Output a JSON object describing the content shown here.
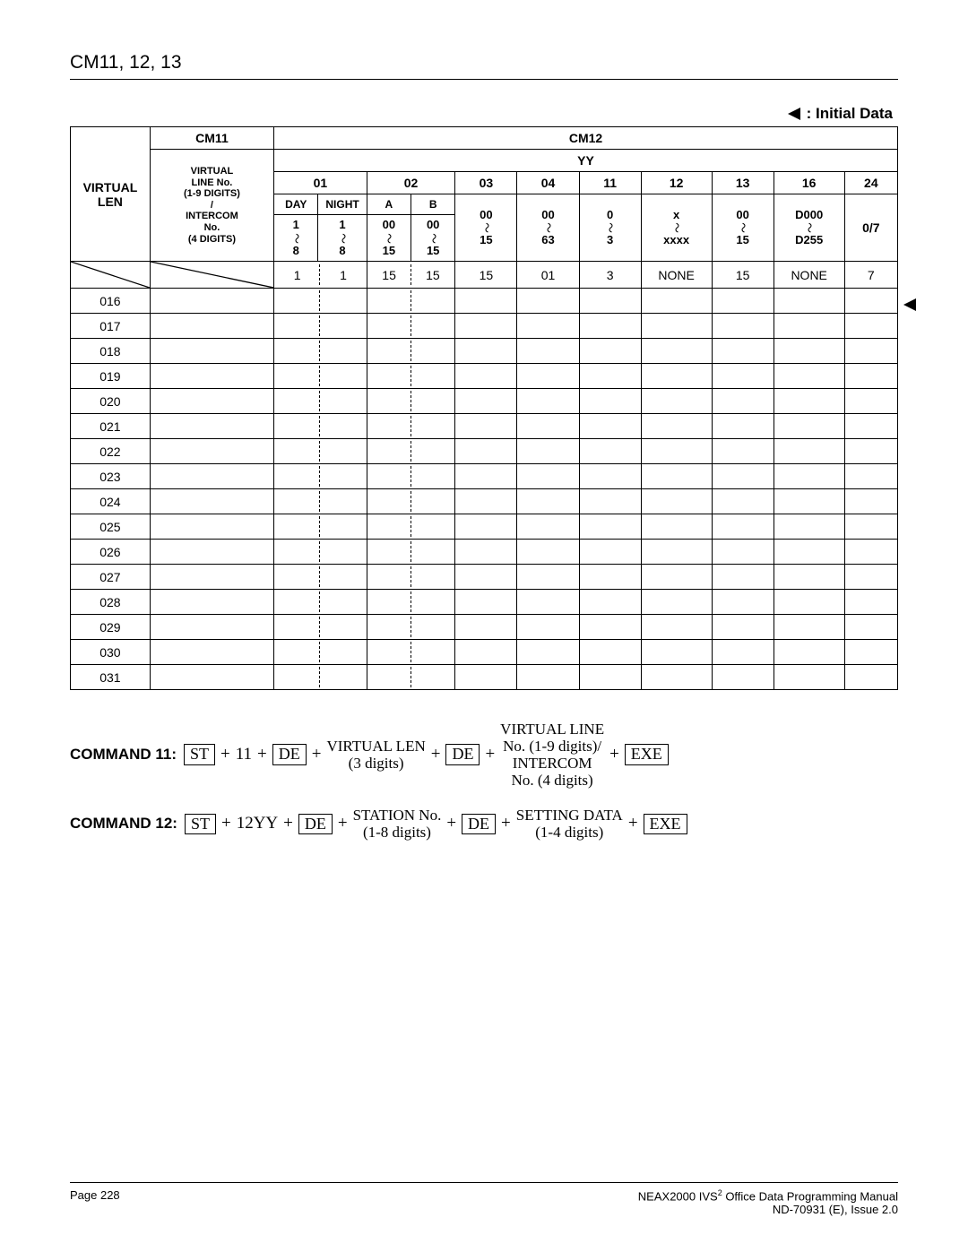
{
  "header": {
    "title": "CM11, 12, 13"
  },
  "initial_data_label": ": Initial Data",
  "table": {
    "col0_header": "VIRTUAL LEN",
    "cm11": "CM11",
    "cm12": "CM12",
    "yy": "YY",
    "cm11_sub_lines": [
      "VIRTUAL",
      "LINE No.",
      "(1-9 DIGITS)",
      "/",
      "INTERCOM",
      "No.",
      "(4 DIGITS)"
    ],
    "yy_cols": [
      "01",
      "02",
      "03",
      "04",
      "11",
      "12",
      "13",
      "16",
      "24"
    ],
    "col01_sub": [
      "DAY",
      "NIGHT"
    ],
    "col02_sub": [
      "A",
      "B"
    ],
    "col01_range": [
      "1",
      "8"
    ],
    "col02_range": [
      "00",
      "15"
    ],
    "col03_range": [
      "00",
      "15"
    ],
    "col04_range": [
      "00",
      "63"
    ],
    "col11_range": [
      "0",
      "3"
    ],
    "col12_range": [
      "x",
      "xxxx"
    ],
    "col13_range": [
      "00",
      "15"
    ],
    "col16_range": [
      "D000",
      "D255"
    ],
    "col24_range": "0/7",
    "initial_row": {
      "c01a": "1",
      "c01b": "1",
      "c02a": "15",
      "c02b": "15",
      "c03": "15",
      "c04": "01",
      "c11": "3",
      "c12": "NONE",
      "c13": "15",
      "c16": "NONE",
      "c24": "7"
    },
    "len_rows": [
      "016",
      "017",
      "018",
      "019",
      "020",
      "021",
      "022",
      "023",
      "024",
      "025",
      "026",
      "027",
      "028",
      "029",
      "030",
      "031"
    ]
  },
  "commands": {
    "c11_label": "COMMAND 11:",
    "c12_label": "COMMAND 12:",
    "ST": "ST",
    "DE": "DE",
    "EXE": "EXE",
    "plus": "+",
    "c11_a": "11",
    "c11_vlen_top": "VIRTUAL LEN",
    "c11_vlen_bot": "(3 digits)",
    "c11_vln1": "VIRTUAL LINE",
    "c11_vln2": "No. (1-9 digits)/",
    "c11_vln3": "INTERCOM",
    "c11_vln4": "No. (4 digits)",
    "c12_a": "12YY",
    "c12_stn_top": "STATION No.",
    "c12_stn_bot": "(1-8 digits)",
    "c12_set_top": "SETTING DATA",
    "c12_set_bot": "(1-4 digits)"
  },
  "footer": {
    "page": "Page 228",
    "man1": "NEAX2000 IVS",
    "man1_sup": "2",
    "man1_rest": " Office Data Programming Manual",
    "man2": "ND-70931 (E), Issue 2.0"
  }
}
